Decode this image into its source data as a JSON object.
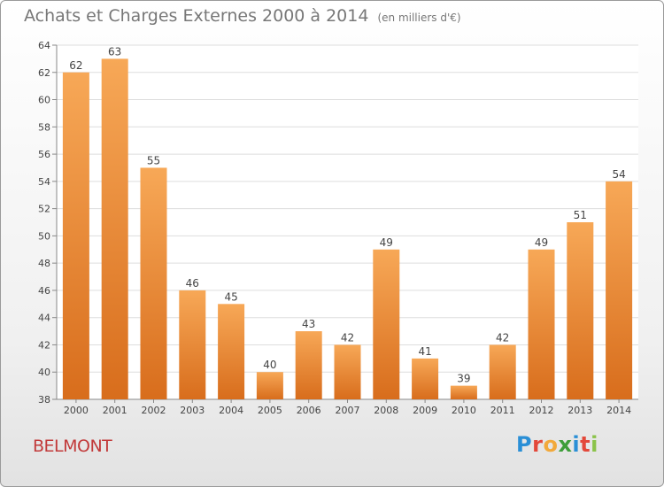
{
  "title": "Achats et Charges Externes 2000 à 2014",
  "unit": "(en milliers d'€)",
  "town": "BELMONT",
  "brand": {
    "letters": [
      "P",
      "r",
      "o",
      "x",
      "i",
      "t",
      "i"
    ],
    "colors": [
      "#2a8fd6",
      "#e3483a",
      "#f2a93b",
      "#3e9e3a",
      "#2a8fd6",
      "#e3483a",
      "#8bc34a"
    ]
  },
  "colors": {
    "bar_top": "#f7a857",
    "bar_bottom": "#d86d1c",
    "grid": "#dddddd",
    "axis_text": "#444444"
  },
  "chart_data": {
    "type": "bar",
    "categories": [
      "2000",
      "2001",
      "2002",
      "2003",
      "2004",
      "2005",
      "2006",
      "2007",
      "2008",
      "2009",
      "2010",
      "2011",
      "2012",
      "2013",
      "2014"
    ],
    "values": [
      62,
      63,
      55,
      46,
      45,
      40,
      43,
      42,
      49,
      41,
      39,
      42,
      49,
      51,
      54
    ],
    "ylim": [
      38,
      64
    ],
    "yticks": [
      38,
      40,
      42,
      44,
      46,
      48,
      50,
      52,
      54,
      56,
      58,
      60,
      62,
      64
    ],
    "grid": true,
    "legend": "none"
  }
}
